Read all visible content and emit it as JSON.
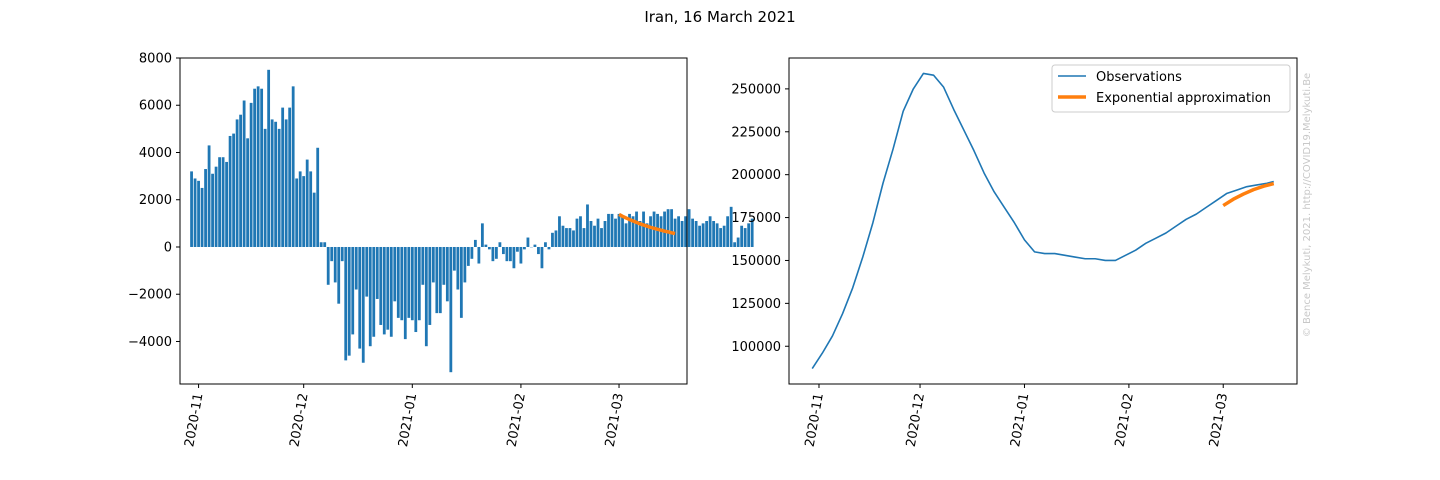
{
  "figure": {
    "title": "Iran, 16 March 2021",
    "watermark": "© Bence Melykuti, 2021. http://COVID19.Melykuti.Be"
  },
  "colors": {
    "observations": "#1f77b4",
    "approximation": "#ff7f0e"
  },
  "chart_data": [
    {
      "type": "bar",
      "date_start": "2020-10-30",
      "date_end": "2021-03-16",
      "x_ticks": [
        "2020-11",
        "2020-12",
        "2021-01",
        "2021-02",
        "2021-03"
      ],
      "y_ticks": [
        "−4000",
        "−2000",
        "0",
        "2000",
        "4000",
        "6000",
        "8000"
      ],
      "ylim": [
        -5800,
        8000
      ],
      "series": [
        {
          "kind": "bar",
          "values": [
            3200,
            2900,
            2800,
            2500,
            3300,
            4300,
            3100,
            3400,
            3800,
            3800,
            3600,
            4700,
            4800,
            5400,
            5600,
            6200,
            4600,
            6100,
            6700,
            6800,
            6700,
            5000,
            7500,
            5400,
            5300,
            5000,
            5900,
            5400,
            5900,
            6800,
            2900,
            3200,
            3000,
            3700,
            3200,
            2300,
            4200,
            200,
            200,
            -1600,
            -600,
            -1500,
            -2400,
            -600,
            -4800,
            -4600,
            -3700,
            -1800,
            -4300,
            -4900,
            -2100,
            -4200,
            -3800,
            -2200,
            -3300,
            -3700,
            -3500,
            -3800,
            -2300,
            -3000,
            -3100,
            -3900,
            -3000,
            -3100,
            -3600,
            -3100,
            -1600,
            -4200,
            -3300,
            -1500,
            -2800,
            -2800,
            -1600,
            -2300,
            -5300,
            -1000,
            -1800,
            -3000,
            -1500,
            -800,
            -500,
            300,
            -700,
            1000,
            100,
            -100,
            -600,
            -500,
            200,
            -300,
            -600,
            -600,
            -900,
            -200,
            -700,
            -100,
            400,
            0,
            100,
            -300,
            -900,
            200,
            -100,
            600,
            700,
            1300,
            900,
            800,
            800,
            700,
            1200,
            1300,
            800,
            1800,
            1100,
            900,
            1200,
            800,
            1100,
            1400,
            1400,
            1200,
            1400,
            1300,
            1000,
            1400,
            1300,
            1500,
            1100,
            1500,
            1000,
            1300,
            1500,
            1400,
            1300,
            1500,
            1600,
            1600,
            1200,
            1300,
            1100,
            1300,
            1600,
            1200,
            1100,
            900,
            1000,
            1100,
            1300,
            1100,
            1000,
            800,
            900,
            1300,
            1700,
            200,
            400,
            900,
            800,
            1000,
            1200
          ],
          "color": "#1f77b4"
        },
        {
          "kind": "line",
          "start_date": "2021-03-01",
          "values": [
            1380,
            1300,
            1230,
            1160,
            1100,
            1040,
            980,
            930,
            880,
            830,
            790,
            750,
            710,
            670,
            640,
            600,
            570
          ],
          "color": "#ff7f0e"
        }
      ]
    },
    {
      "type": "line",
      "date_start": "2020-10-30",
      "date_end": "2021-03-16",
      "x_ticks": [
        "2020-11",
        "2020-12",
        "2021-01",
        "2021-02",
        "2021-03"
      ],
      "y_ticks": [
        "100000",
        "125000",
        "150000",
        "175000",
        "200000",
        "225000",
        "250000"
      ],
      "ylim": [
        78000,
        268000
      ],
      "legend": {
        "placement": "upper-right",
        "entries": [
          "Observations",
          "Exponential approximation"
        ]
      },
      "series": [
        {
          "name": "Observations",
          "x": [
            "2020-10-30",
            "2020-11-02",
            "2020-11-05",
            "2020-11-08",
            "2020-11-11",
            "2020-11-14",
            "2020-11-17",
            "2020-11-20",
            "2020-11-23",
            "2020-11-26",
            "2020-11-29",
            "2020-12-02",
            "2020-12-05",
            "2020-12-08",
            "2020-12-11",
            "2020-12-14",
            "2020-12-17",
            "2020-12-20",
            "2020-12-23",
            "2020-12-26",
            "2020-12-29",
            "2021-01-01",
            "2021-01-04",
            "2021-01-07",
            "2021-01-10",
            "2021-01-13",
            "2021-01-16",
            "2021-01-19",
            "2021-01-22",
            "2021-01-25",
            "2021-01-28",
            "2021-01-31",
            "2021-02-03",
            "2021-02-06",
            "2021-02-09",
            "2021-02-12",
            "2021-02-15",
            "2021-02-18",
            "2021-02-21",
            "2021-02-24",
            "2021-02-27",
            "2021-03-02",
            "2021-03-05",
            "2021-03-08",
            "2021-03-11",
            "2021-03-14",
            "2021-03-16"
          ],
          "y": [
            87000,
            96000,
            106000,
            119000,
            134000,
            152000,
            172000,
            195000,
            215000,
            237000,
            250000,
            259000,
            258000,
            251000,
            238000,
            226000,
            214000,
            201000,
            190000,
            181000,
            172000,
            162000,
            155000,
            154000,
            154000,
            153000,
            152000,
            151000,
            151000,
            150000,
            150000,
            153000,
            156000,
            160000,
            163000,
            166000,
            170000,
            174000,
            177000,
            181000,
            185000,
            189000,
            191000,
            193000,
            194000,
            195000,
            196000
          ],
          "color": "#1f77b4"
        },
        {
          "name": "Exponential approximation",
          "x": [
            "2021-03-01",
            "2021-03-04",
            "2021-03-07",
            "2021-03-10",
            "2021-03-13",
            "2021-03-16"
          ],
          "y": [
            182000,
            185700,
            188700,
            191300,
            193300,
            194800
          ],
          "color": "#ff7f0e"
        }
      ]
    }
  ]
}
